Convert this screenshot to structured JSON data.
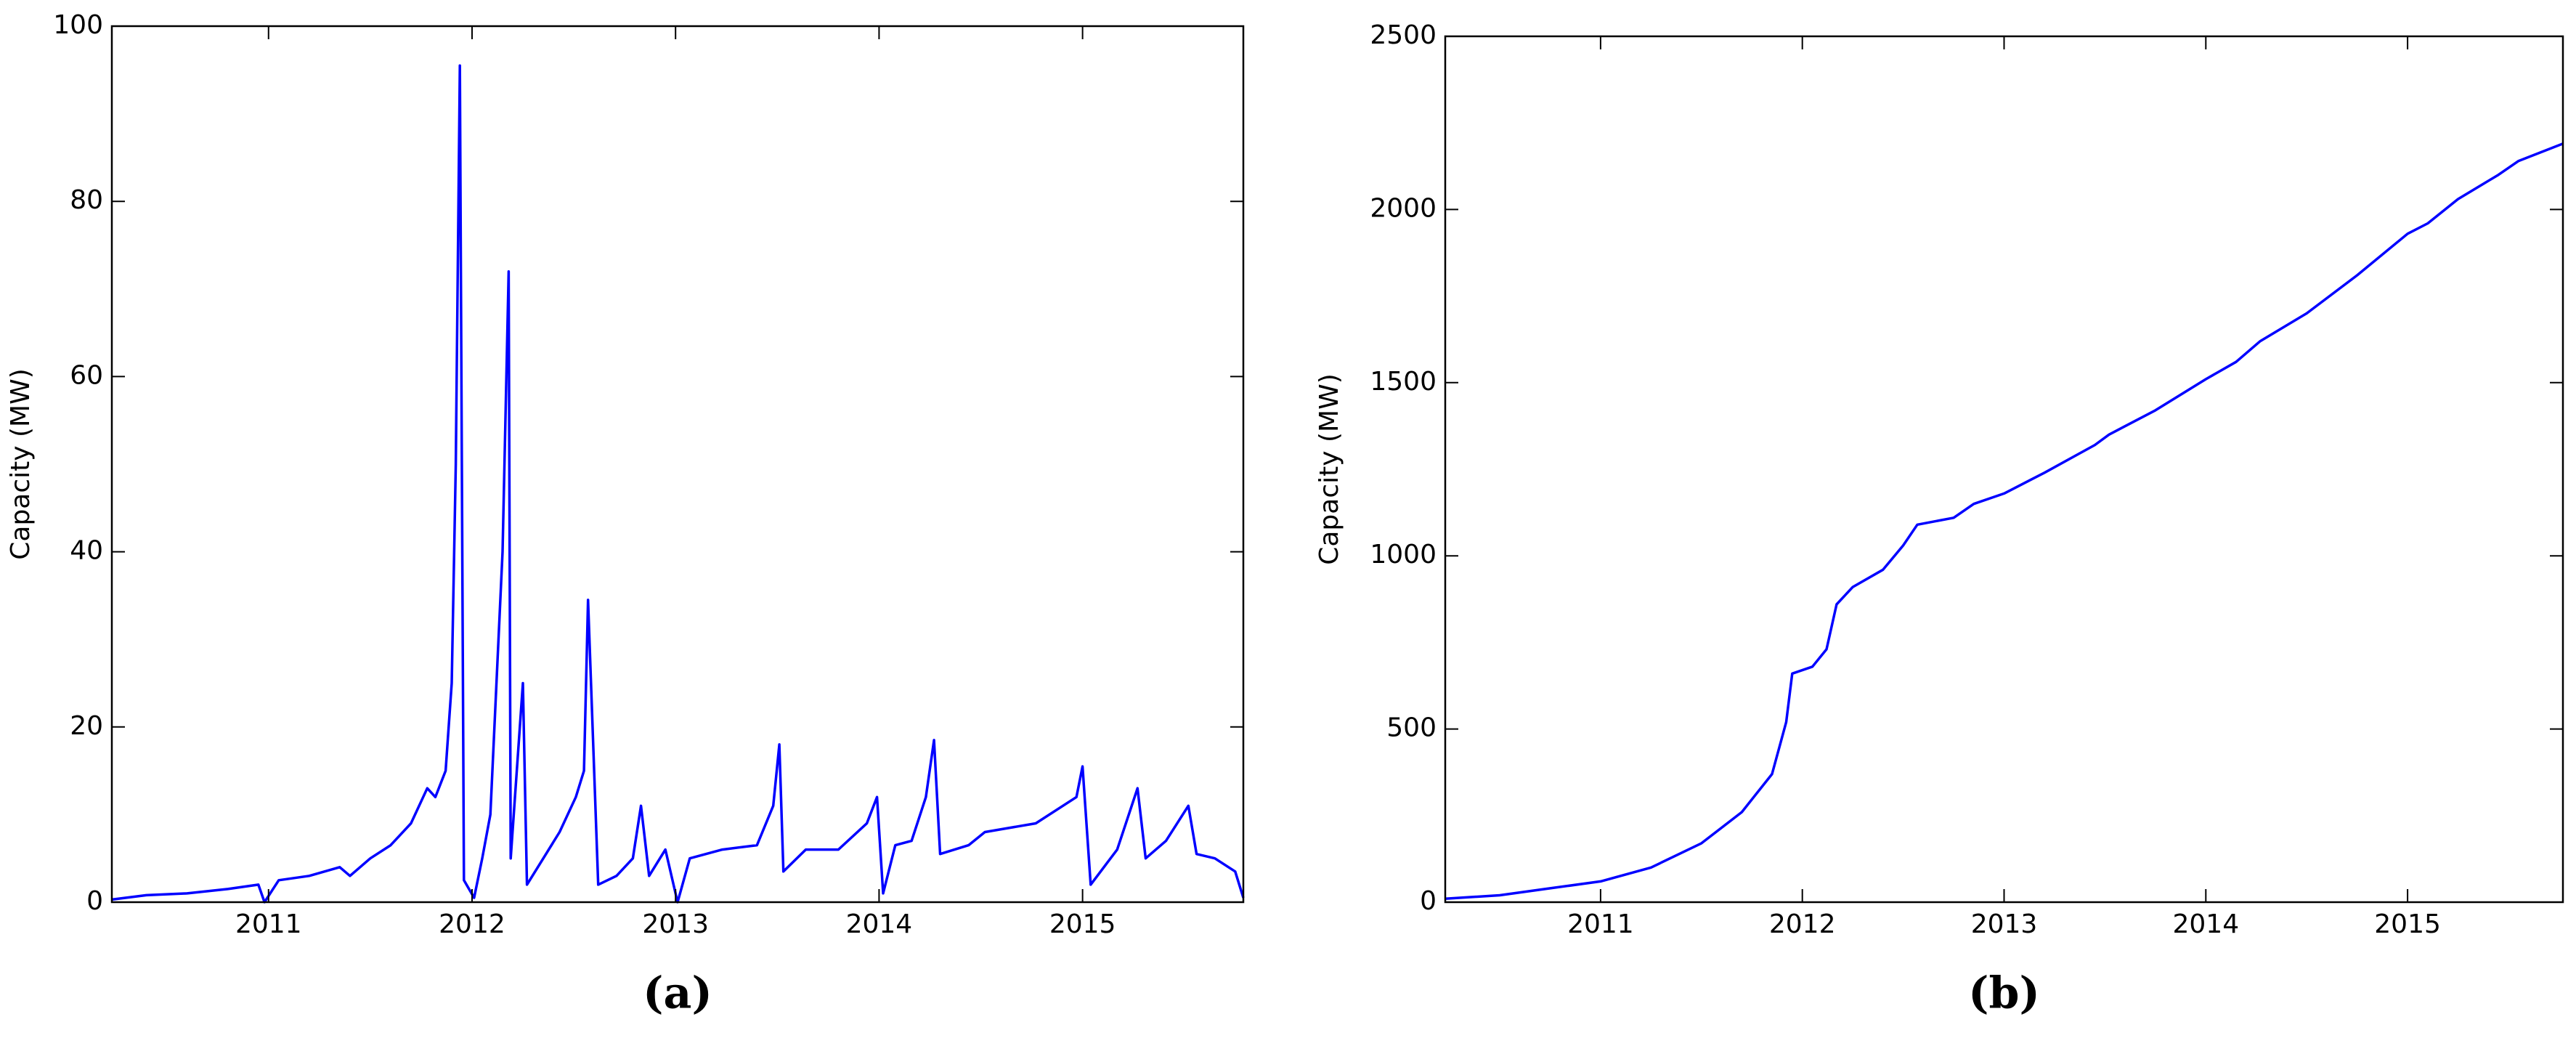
{
  "chart_data": [
    {
      "type": "line",
      "caption": "(a)",
      "y_label": "Capacity (MW)",
      "color": "#0000ff",
      "x": [
        2010.23,
        2010.4,
        2010.6,
        2010.8,
        2010.95,
        2010.98,
        2011.05,
        2011.2,
        2011.35,
        2011.4,
        2011.5,
        2011.6,
        2011.7,
        2011.78,
        2011.82,
        2011.87,
        2011.9,
        2011.92,
        2011.94,
        2011.96,
        2012.01,
        2012.05,
        2012.09,
        2012.15,
        2012.18,
        2012.19,
        2012.25,
        2012.27,
        2012.35,
        2012.43,
        2012.51,
        2012.55,
        2012.57,
        2012.62,
        2012.71,
        2012.79,
        2012.83,
        2012.87,
        2012.95,
        2013.01,
        2013.07,
        2013.23,
        2013.4,
        2013.48,
        2013.51,
        2013.53,
        2013.64,
        2013.8,
        2013.94,
        2013.99,
        2014.02,
        2014.08,
        2014.16,
        2014.23,
        2014.27,
        2014.3,
        2014.44,
        2014.52,
        2014.77,
        2014.97,
        2015.0,
        2015.04,
        2015.17,
        2015.27,
        2015.31,
        2015.41,
        2015.52,
        2015.56,
        2015.65,
        2015.75,
        2015.79
      ],
      "values": [
        0.3,
        0.8,
        1.0,
        1.5,
        2.0,
        0,
        2.5,
        3.0,
        4.0,
        3.0,
        5.0,
        6.5,
        9,
        13,
        12,
        15,
        25,
        50,
        95.5,
        2.5,
        0.5,
        5,
        10,
        40,
        72,
        5,
        25,
        2,
        5,
        8,
        12,
        15,
        34.5,
        2,
        3,
        5,
        11,
        3,
        6,
        0,
        5,
        6,
        6.5,
        11,
        18,
        3.5,
        6,
        6,
        9,
        12,
        1,
        6.5,
        7,
        12,
        18.5,
        5.5,
        6.5,
        8,
        9,
        12,
        15.5,
        2,
        6,
        13,
        5,
        7,
        11,
        5.5,
        5,
        3.5,
        0.5
      ],
      "xlim": [
        2010.23,
        2015.79
      ],
      "xticks": [
        2011,
        2012,
        2013,
        2014,
        2015
      ],
      "ylim": [
        0,
        100
      ],
      "yticks": [
        0,
        20,
        40,
        60,
        80,
        100
      ]
    },
    {
      "type": "line",
      "caption": "(b)",
      "y_label": "Capacity (MW)",
      "color": "#0000ff",
      "x": [
        2010.23,
        2010.5,
        2010.75,
        2011.0,
        2011.25,
        2011.5,
        2011.7,
        2011.85,
        2011.92,
        2011.95,
        2012.05,
        2012.12,
        2012.17,
        2012.25,
        2012.4,
        2012.5,
        2012.57,
        2012.75,
        2012.85,
        2013.0,
        2013.2,
        2013.45,
        2013.52,
        2013.75,
        2014.0,
        2014.15,
        2014.27,
        2014.5,
        2014.75,
        2015.0,
        2015.1,
        2015.25,
        2015.45,
        2015.55,
        2015.77
      ],
      "values": [
        10,
        20,
        40,
        60,
        100,
        170,
        260,
        370,
        520,
        660,
        680,
        730,
        860,
        910,
        960,
        1030,
        1090,
        1110,
        1150,
        1180,
        1240,
        1320,
        1350,
        1420,
        1510,
        1560,
        1620,
        1700,
        1810,
        1930,
        1960,
        2030,
        2100,
        2140,
        2190
      ],
      "xlim": [
        2010.23,
        2015.77
      ],
      "xticks": [
        2011,
        2012,
        2013,
        2014,
        2015
      ],
      "ylim": [
        0,
        2500
      ],
      "yticks": [
        0,
        500,
        1000,
        1500,
        2000,
        2500
      ]
    }
  ]
}
